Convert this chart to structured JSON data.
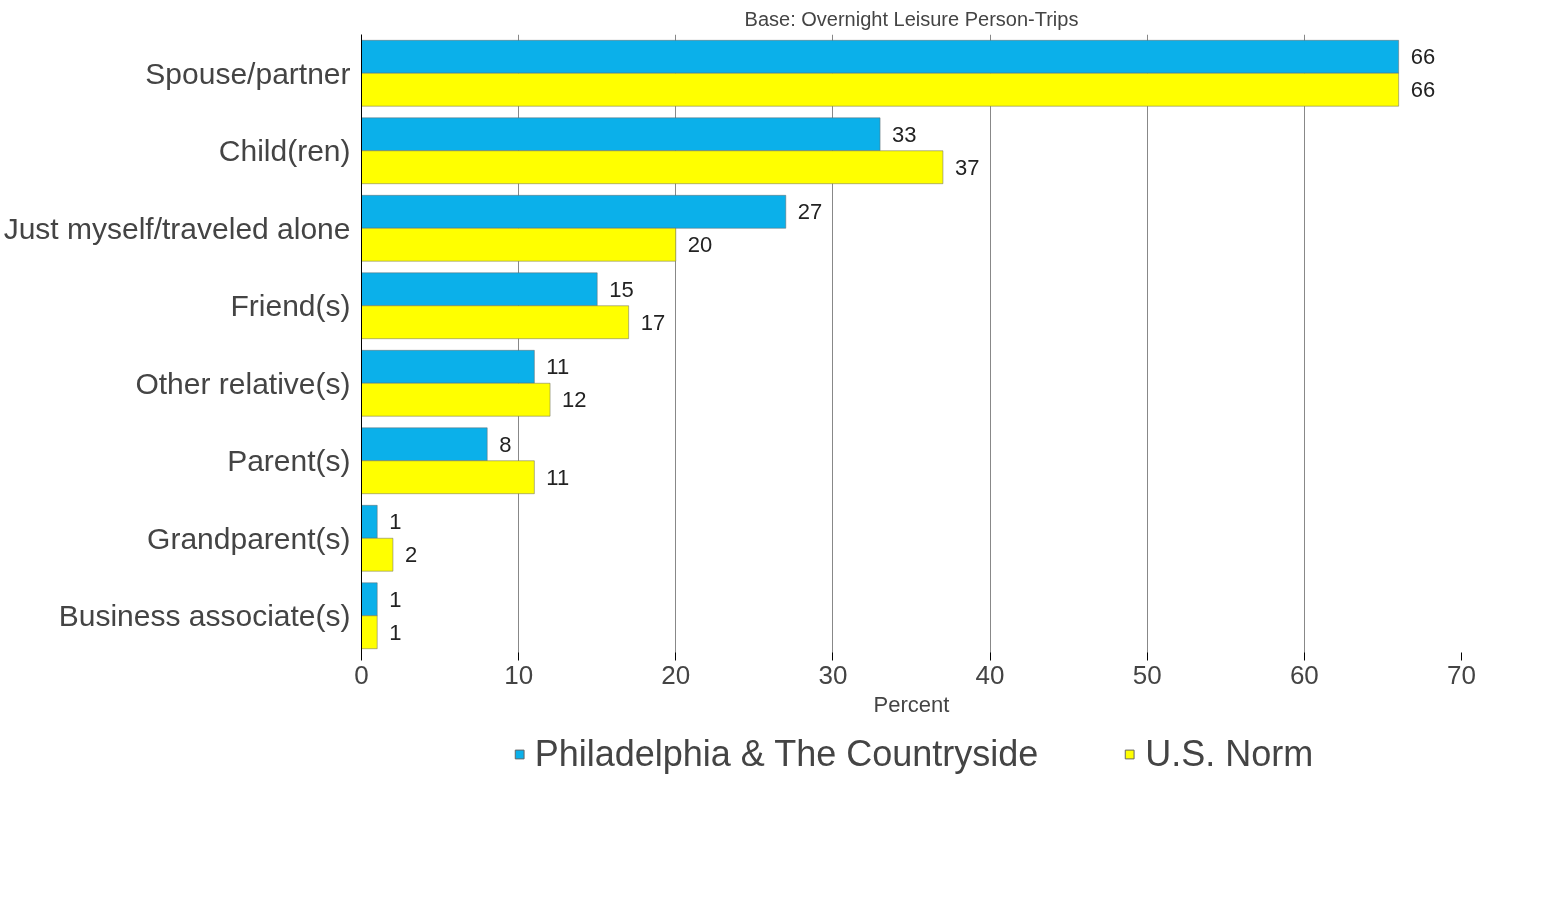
{
  "chart_data": {
    "type": "bar",
    "orientation": "horizontal",
    "title": "Base: Overnight Leisure Person-Trips",
    "xlabel": "Percent",
    "categories": [
      "Spouse/partner",
      "Child(ren)",
      "Just myself/traveled alone",
      "Friend(s)",
      "Other relative(s)",
      "Parent(s)",
      "Grandparent(s)",
      "Business associate(s)"
    ],
    "series": [
      {
        "name": "Philadelphia & The Countryside",
        "color": "#0bb0ea",
        "values": [
          66,
          33,
          27,
          15,
          11,
          8,
          1,
          1
        ]
      },
      {
        "name": "U.S. Norm",
        "color": "#ffff00",
        "values": [
          66,
          37,
          20,
          17,
          12,
          11,
          2,
          1
        ]
      }
    ],
    "xlim": [
      0,
      70
    ],
    "xticks": [
      0,
      10,
      20,
      30,
      40,
      50,
      60,
      70
    ],
    "grid": "x",
    "legend": "bottom",
    "data_labels": true
  }
}
